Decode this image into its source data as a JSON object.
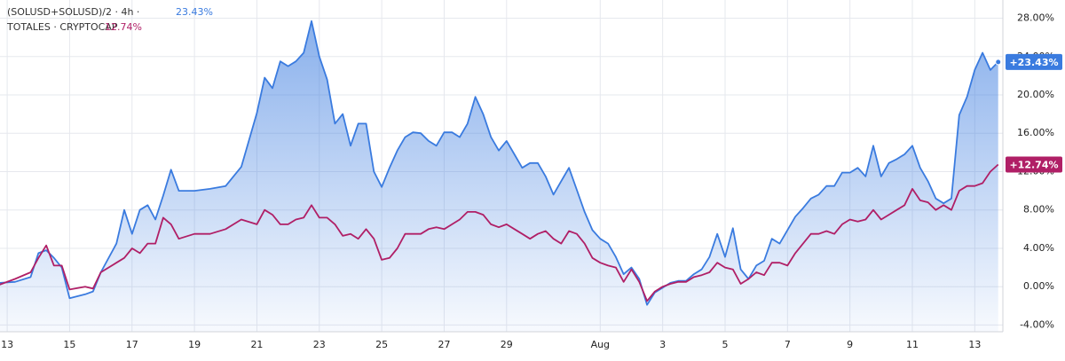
{
  "chart_data": {
    "type": "line",
    "x": [
      12.75,
      13.25,
      13.75,
      14,
      14.25,
      14.5,
      14.75,
      15,
      15.5,
      15.75,
      16,
      16.5,
      16.75,
      17,
      17.25,
      17.5,
      17.75,
      18,
      18.25,
      18.5,
      19,
      19.5,
      20,
      20.5,
      21,
      21.25,
      21.5,
      21.75,
      22,
      22.25,
      22.5,
      22.75,
      23,
      23.25,
      23.5,
      23.75,
      24,
      24.25,
      24.5,
      24.75,
      25,
      25.25,
      25.5,
      25.75,
      26,
      26.25,
      26.5,
      26.75,
      27,
      27.25,
      27.5,
      27.75,
      28,
      28.25,
      28.5,
      28.75,
      29,
      29.25,
      29.5,
      29.75,
      30,
      30.25,
      30.5,
      30.75,
      31,
      31.25,
      31.5,
      31.75,
      32,
      32.25,
      32.5,
      32.75,
      33,
      33.25,
      33.5,
      33.75,
      34,
      34.25,
      34.5,
      34.75,
      35,
      35.25,
      35.5,
      35.75,
      36,
      36.25,
      36.5,
      36.75,
      37,
      37.25,
      37.5,
      37.75,
      38,
      38.25,
      38.5,
      38.75,
      39,
      39.25,
      39.5,
      39.75,
      40,
      40.25,
      40.5,
      40.75,
      41,
      41.25,
      41.5,
      41.75,
      42,
      42.25,
      42.5,
      42.75,
      43,
      43.25,
      43.5,
      43.75,
      44,
      44.25,
      44.5,
      44.75
    ],
    "series": [
      {
        "name": "(SOLUSD+SOLUSD)/2 · 4h ·",
        "color": "#3a7bdf",
        "area": true,
        "legend_value": "23.43%",
        "badge": "+23.43%",
        "values": [
          0.4,
          0.5,
          1.0,
          3.5,
          3.8,
          3.0,
          2.0,
          -1.2,
          -0.8,
          -0.5,
          1.5,
          4.5,
          8.0,
          5.5,
          8.0,
          8.5,
          7.0,
          9.5,
          12.2,
          10.0,
          10.0,
          10.2,
          10.5,
          12.5,
          18.1,
          21.8,
          20.7,
          23.5,
          23,
          23.5,
          24.4,
          27.7,
          24,
          21.6,
          17,
          18,
          14.7,
          17,
          17,
          12,
          10.4,
          12.4,
          14.2,
          15.6,
          16.1,
          16,
          15.2,
          14.7,
          16.1,
          16.1,
          15.6,
          17,
          19.8,
          18,
          15.6,
          14.2,
          15.2,
          13.8,
          12.4,
          12.9,
          12.9,
          11.5,
          9.6,
          11,
          12.4,
          10.1,
          7.8,
          5.9,
          5,
          4.5,
          3.1,
          1.3,
          2.0,
          0.8,
          -1.9,
          -0.6,
          -0.1,
          0.4,
          0.6,
          0.6,
          1.3,
          1.8,
          3.1,
          5.5,
          3.1,
          6.1,
          1.8,
          0.8,
          2.2,
          2.7,
          5,
          4.5,
          5.9,
          7.3,
          8.2,
          9.2,
          9.6,
          10.5,
          10.5,
          11.9,
          11.9,
          12.4,
          11.5,
          14.7,
          11.5,
          12.9,
          13.3,
          13.8,
          14.7,
          12.4,
          11,
          9.2,
          8.7,
          9.2,
          17.9,
          19.8,
          22.6,
          24.4,
          22.6,
          23.43
        ]
      },
      {
        "name": "TOTALES · CRYPTOCAP",
        "color": "#b01f66",
        "area": false,
        "legend_value": "12.74%",
        "badge": "+12.74%",
        "values": [
          0.2,
          0.8,
          1.5,
          3.0,
          4.3,
          2.2,
          2.2,
          -0.3,
          0,
          -0.2,
          1.5,
          2.5,
          3.0,
          4.0,
          3.5,
          4.5,
          4.5,
          7.2,
          6.5,
          5.0,
          5.5,
          5.5,
          6.0,
          7.0,
          6.5,
          8.0,
          7.5,
          6.5,
          6.5,
          7.0,
          7.2,
          8.5,
          7.2,
          7.2,
          6.5,
          5.3,
          5.5,
          5.0,
          6.0,
          5.0,
          2.8,
          3.0,
          4.0,
          5.5,
          5.5,
          5.5,
          6.0,
          6.2,
          6.0,
          6.5,
          7.0,
          7.8,
          7.8,
          7.5,
          6.5,
          6.2,
          6.5,
          6.0,
          5.5,
          5.0,
          5.5,
          5.8,
          5.0,
          4.5,
          5.8,
          5.5,
          4.5,
          3.0,
          2.5,
          2.2,
          2.0,
          0.5,
          1.8,
          0.5,
          -1.5,
          -0.5,
          0,
          0.3,
          0.5,
          0.5,
          1.0,
          1.2,
          1.5,
          2.5,
          2.0,
          1.8,
          0.3,
          0.8,
          1.5,
          1.2,
          2.5,
          2.5,
          2.2,
          3.5,
          4.5,
          5.5,
          5.5,
          5.8,
          5.5,
          6.5,
          7.0,
          6.8,
          7.0,
          8.0,
          7.0,
          7.5,
          8.0,
          8.5,
          10.2,
          9.0,
          8.8,
          8.0,
          8.5,
          8.0,
          10.0,
          10.5,
          10.5,
          10.8,
          12.0,
          12.74
        ]
      }
    ],
    "xlim": [
      12.77,
      44.9
    ],
    "xticks": [
      13,
      15,
      17,
      19,
      21,
      23,
      25,
      27,
      29,
      {
        "value": 32,
        "label": "Aug"
      },
      {
        "value": 34,
        "label": "3"
      },
      {
        "value": 36,
        "label": "5"
      },
      {
        "value": 38,
        "label": "7"
      },
      {
        "value": 40,
        "label": "9"
      },
      {
        "value": 42,
        "label": "11"
      },
      {
        "value": 44,
        "label": "13"
      }
    ],
    "ylim": [
      -4.7,
      29.9
    ],
    "yticks": [
      {
        "value": 28,
        "label": "28.00%"
      },
      {
        "value": 24,
        "label": "24.00%"
      },
      {
        "value": 20,
        "label": "20.00%"
      },
      {
        "value": 16,
        "label": "16.00%"
      },
      {
        "value": 12,
        "label": "12.00%"
      },
      {
        "value": 8,
        "label": "8.00%"
      },
      {
        "value": 4,
        "label": "4.00%"
      },
      {
        "value": 0,
        "label": "0.00%"
      },
      {
        "value": -4,
        "label": "-4.00%"
      }
    ],
    "grid": true
  }
}
